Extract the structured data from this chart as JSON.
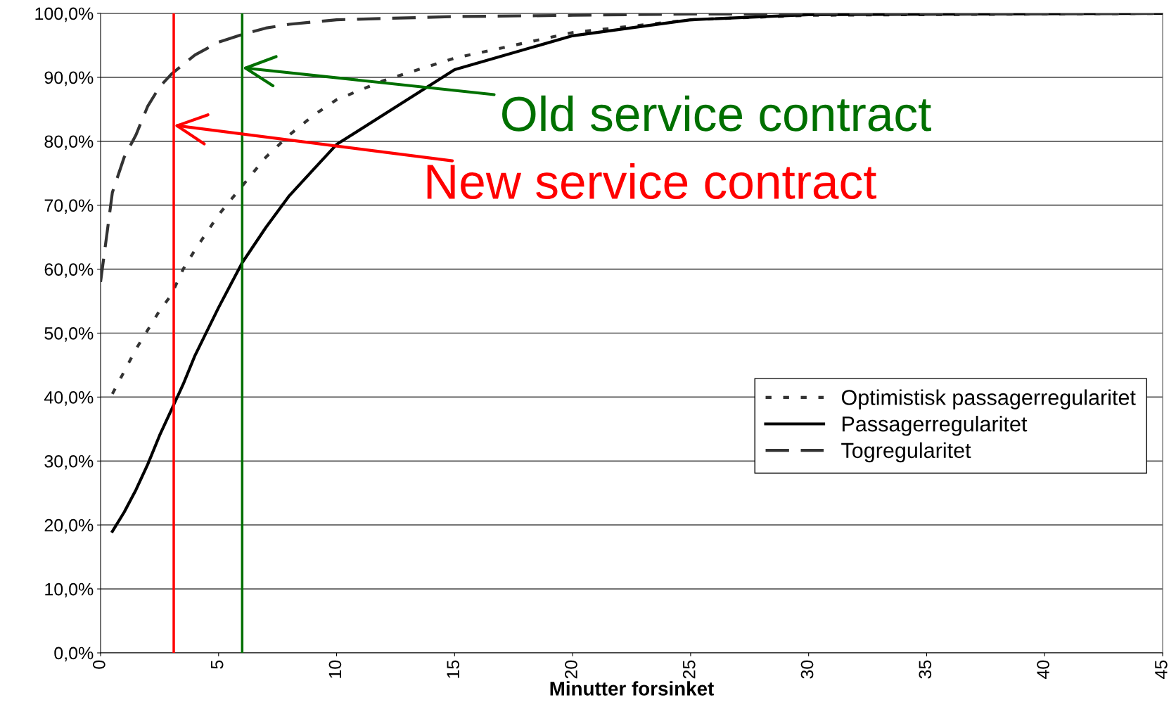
{
  "chart_data": {
    "type": "line",
    "xlabel": "Minutter forsinket",
    "series": [
      {
        "name": "Optimistisk passagerregularitet",
        "color": "#333333",
        "line_style": "dotted",
        "x": [
          0.5,
          1,
          1.5,
          2,
          2.5,
          3,
          3.5,
          4,
          5,
          6,
          7,
          8,
          9,
          10,
          12,
          15,
          20,
          25,
          30,
          45
        ],
        "values": [
          40.5,
          44,
          47.5,
          50.5,
          53.5,
          56,
          60,
          63,
          68.5,
          73,
          77.5,
          81,
          84,
          86.5,
          89.5,
          93,
          97,
          99,
          99.7,
          100
        ]
      },
      {
        "name": "Passagerregularitet",
        "color": "#000000",
        "line_style": "solid",
        "x": [
          0.5,
          1,
          1.5,
          2,
          2.5,
          3,
          3.5,
          4,
          5,
          5.5,
          6,
          7,
          8,
          8.5,
          9,
          10,
          15,
          20,
          25,
          30,
          45
        ],
        "values": [
          19,
          22,
          25.5,
          29.5,
          34,
          38,
          42,
          46.5,
          54,
          57.5,
          61,
          66.5,
          71.5,
          73.5,
          75.5,
          79.5,
          91.2,
          96.5,
          99,
          99.8,
          100
        ]
      },
      {
        "name": "Togregularitet",
        "color": "#333333",
        "line_style": "dashed",
        "x": [
          0,
          0.5,
          1,
          1.5,
          2,
          2.5,
          3,
          4,
          5,
          6,
          7,
          8,
          10,
          15,
          20,
          25,
          45
        ],
        "values": [
          58,
          72,
          77.5,
          81,
          85.5,
          88.5,
          90.5,
          93.5,
          95.5,
          96.7,
          97.7,
          98.3,
          99,
          99.5,
          99.7,
          99.9,
          100
        ]
      }
    ],
    "xlim": [
      0,
      45
    ],
    "xticks": [
      0,
      5,
      10,
      15,
      20,
      25,
      30,
      35,
      40,
      45
    ],
    "ylim": [
      0,
      100
    ],
    "yticks": [
      {
        "value": 0,
        "label": "0,0%"
      },
      {
        "value": 10,
        "label": "10,0%"
      },
      {
        "value": 20,
        "label": "20,0%"
      },
      {
        "value": 30,
        "label": "30,0%"
      },
      {
        "value": 40,
        "label": "40,0%"
      },
      {
        "value": 50,
        "label": "50,0%"
      },
      {
        "value": 60,
        "label": "60,0%"
      },
      {
        "value": 70,
        "label": "70,0%"
      },
      {
        "value": 80,
        "label": "80,0%"
      },
      {
        "value": 90,
        "label": "90,0%"
      },
      {
        "value": 100,
        "label": "100,0%"
      }
    ],
    "ref_lines": [
      {
        "axis": "x",
        "value": 3.1,
        "color": "#ff0000"
      },
      {
        "axis": "x",
        "value": 6,
        "color": "#007000"
      }
    ],
    "annotations": [
      {
        "text": "Old service contract",
        "x": 6,
        "y": 91.5
      },
      {
        "text": "New service contract",
        "x": 3.1,
        "y": 82.5
      }
    ],
    "grid": "y",
    "legend": "right",
    "marker": "none"
  }
}
